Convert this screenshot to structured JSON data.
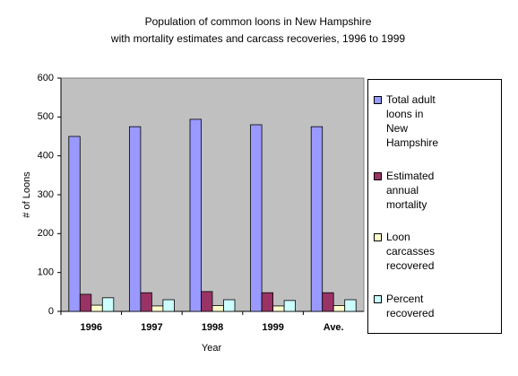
{
  "chart_data": {
    "type": "bar",
    "title": [
      "Population of common loons in New Hampshire",
      "with mortality estimates and carcass recoveries, 1996 to 1999"
    ],
    "x_label": "Year",
    "y_label": "# of Loons",
    "categories": [
      "1996",
      "1997",
      "1998",
      "1999",
      "Ave."
    ],
    "series": [
      {
        "name": "Total adult loons in New Hampshire",
        "color": "#9999ff",
        "values": [
          450,
          475,
          494,
          480,
          475
        ]
      },
      {
        "name": "Estimated annual mortality",
        "color": "#993366",
        "values": [
          44,
          48,
          51,
          48,
          48
        ]
      },
      {
        "name": "Loon carcasses recovered",
        "color": "#ffffcc",
        "values": [
          16,
          14,
          15,
          14,
          15
        ]
      },
      {
        "name": "Percent recovered",
        "color": "#ccffff",
        "values": [
          35,
          30,
          30,
          28,
          30
        ]
      }
    ],
    "ylim": [
      0,
      600
    ],
    "yticks": [
      0,
      100,
      200,
      300,
      400,
      500,
      600
    ],
    "grid": false,
    "plot_background": "#c0c0c0",
    "legend": "right"
  }
}
